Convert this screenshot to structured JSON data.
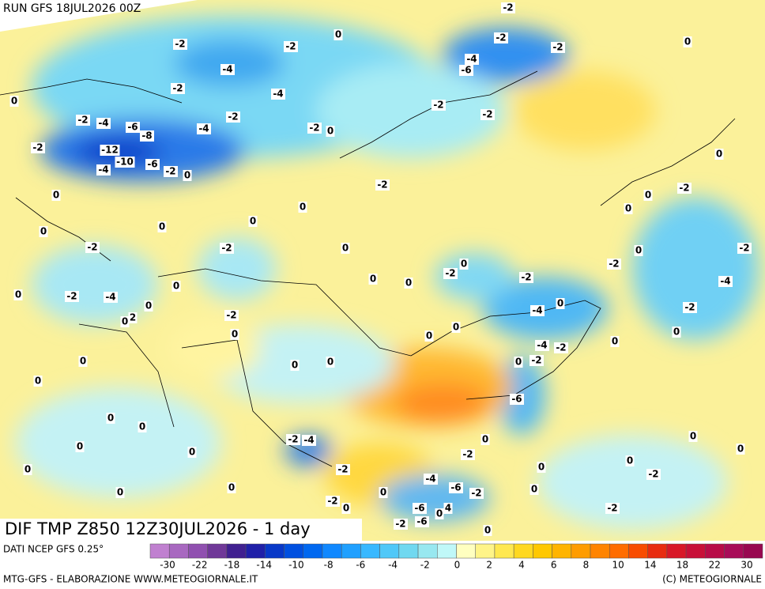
{
  "map": {
    "run": "RUN GFS 18JUL2026 00Z",
    "title": "DIF TMP Z850 12Z30JUL2026 - 1 day",
    "source": "DATI NCEP GFS 0.25°",
    "footer_left": "MTG-GFS - ELABORAZIONE WWW.METEOGIORNALE.IT",
    "footer_right": "(C) METEOGIORNALE",
    "contour_labels": [
      -2,
      0,
      -2,
      -2,
      -2,
      -2,
      0,
      -4,
      -6,
      -4,
      0,
      -2,
      -4,
      -2,
      -2,
      -2,
      -4,
      -6,
      -8,
      -4,
      -2,
      -2,
      0,
      -2,
      -12,
      -10,
      -4,
      -6,
      -2,
      0,
      0,
      -2,
      0,
      0,
      -2,
      0,
      0,
      0,
      0,
      0,
      -2,
      -2,
      0,
      -2,
      0,
      -2,
      0,
      -2,
      0,
      0,
      -2,
      -4,
      0,
      0,
      -2,
      -4,
      0,
      -4,
      0,
      -2,
      0,
      2,
      -2,
      0,
      0,
      0,
      0,
      -4,
      -2,
      0,
      0,
      0,
      0,
      0,
      -2,
      0,
      -6,
      0,
      0,
      0,
      -2,
      -4,
      0,
      0,
      0,
      0,
      -2,
      0,
      0,
      0,
      -2,
      -2,
      -4,
      -6,
      -2,
      0,
      0,
      0,
      -2,
      0,
      -2,
      4,
      0,
      -6,
      0,
      -6,
      -2,
      0
    ],
    "colorbar": {
      "colors": [
        "#c080d0",
        "#a868c0",
        "#9050b0",
        "#703898",
        "#402090",
        "#2020a8",
        "#0838c8",
        "#0050e0",
        "#0068f0",
        "#1088ff",
        "#20a0ff",
        "#38b8ff",
        "#50c8f8",
        "#70d8f0",
        "#98e8f0",
        "#c0f8f8",
        "#ffffc0",
        "#fff488",
        "#ffe850",
        "#ffd820",
        "#ffc800",
        "#ffb400",
        "#ff9c00",
        "#ff8400",
        "#ff6c00",
        "#f84c00",
        "#e82c10",
        "#d81828",
        "#c81038",
        "#b80c48",
        "#a80c58",
        "#980850"
      ],
      "ticks": [
        -30,
        -22,
        -18,
        -14,
        -10,
        -8,
        -6,
        -4,
        -2,
        0,
        2,
        4,
        6,
        8,
        10,
        14,
        18,
        22,
        30
      ]
    }
  }
}
